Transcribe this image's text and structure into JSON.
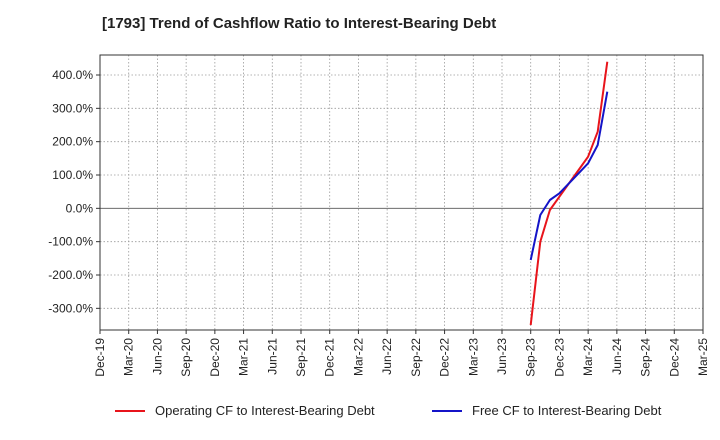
{
  "chart_data": {
    "type": "line",
    "title": "[1793]  Trend of Cashflow Ratio to Interest-Bearing Debt",
    "xlabel": "",
    "ylabel": "",
    "x_ticks": [
      "Dec-19",
      "Mar-20",
      "Jun-20",
      "Sep-20",
      "Dec-20",
      "Mar-21",
      "Jun-21",
      "Sep-21",
      "Dec-21",
      "Mar-22",
      "Jun-22",
      "Sep-22",
      "Dec-22",
      "Mar-23",
      "Jun-23",
      "Sep-23",
      "Dec-23",
      "Mar-24",
      "Jun-24",
      "Sep-24",
      "Dec-24",
      "Mar-25"
    ],
    "y_ticks": [
      400,
      300,
      200,
      100,
      0,
      -100,
      -200,
      -300
    ],
    "y_tick_labels": [
      "400.0%",
      "300.0%",
      "200.0%",
      "100.0%",
      "0.0%",
      "-100.0%",
      "-200.0%",
      "-300.0%"
    ],
    "ylim": [
      -365,
      460
    ],
    "grid": true,
    "legend_position": "bottom",
    "series": [
      {
        "name": "Operating CF to Interest-Bearing Debt",
        "color": "#e8141b",
        "points": [
          {
            "x": "2023-09-30",
            "y": -350
          },
          {
            "x": "2023-10-31",
            "y": -100
          },
          {
            "x": "2023-11-30",
            "y": -5
          },
          {
            "x": "2023-12-31",
            "y": 35
          },
          {
            "x": "2024-01-31",
            "y": 75
          },
          {
            "x": "2024-02-29",
            "y": 115
          },
          {
            "x": "2024-03-31",
            "y": 155
          },
          {
            "x": "2024-04-30",
            "y": 230
          },
          {
            "x": "2024-05-31",
            "y": 440
          }
        ]
      },
      {
        "name": "Free CF to Interest-Bearing Debt",
        "color": "#1414c8",
        "points": [
          {
            "x": "2023-09-30",
            "y": -155
          },
          {
            "x": "2023-10-31",
            "y": -20
          },
          {
            "x": "2023-11-30",
            "y": 25
          },
          {
            "x": "2023-12-31",
            "y": 45
          },
          {
            "x": "2024-01-31",
            "y": 75
          },
          {
            "x": "2024-02-29",
            "y": 105
          },
          {
            "x": "2024-03-31",
            "y": 135
          },
          {
            "x": "2024-04-30",
            "y": 190
          },
          {
            "x": "2024-05-31",
            "y": 350
          }
        ]
      }
    ]
  }
}
